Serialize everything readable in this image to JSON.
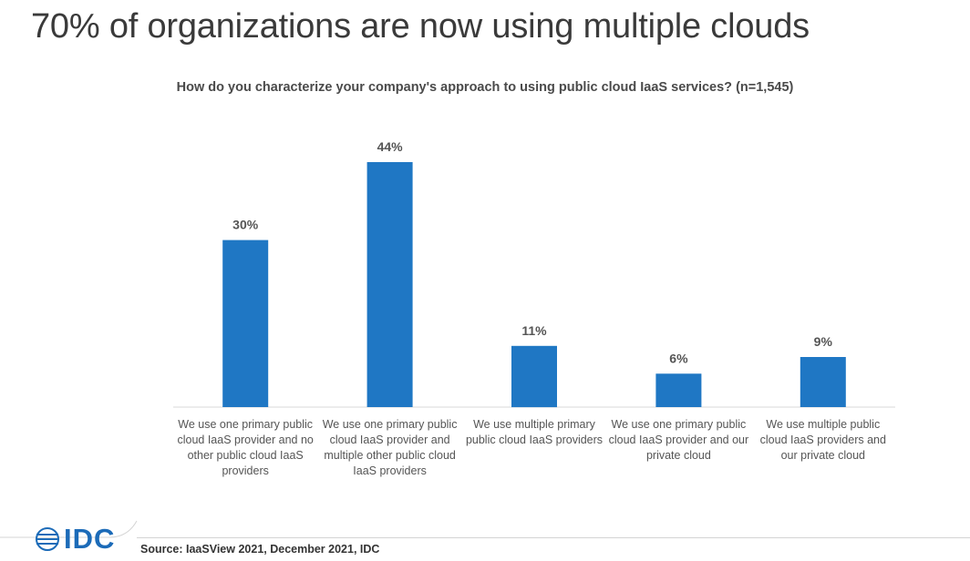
{
  "page": {
    "title": "70% of organizations are now using multiple clouds"
  },
  "chart_data": {
    "type": "bar",
    "title": "How do you characterize your company's approach to using public cloud IaaS services? (n=1,545)",
    "xlabel": "",
    "ylabel": "",
    "ylim": [
      0,
      50
    ],
    "grid": false,
    "color": "#1f77c4",
    "categories": [
      "We use one primary public cloud IaaS provider and no other public cloud IaaS providers",
      "We use one primary public cloud IaaS provider and multiple other public cloud IaaS providers",
      "We use multiple primary public cloud IaaS providers",
      "We use one primary public cloud IaaS provider and our private cloud",
      "We use multiple public cloud IaaS providers and our private cloud"
    ],
    "values": [
      30,
      44,
      11,
      6,
      9
    ],
    "value_labels": [
      "30%",
      "44%",
      "11%",
      "6%",
      "9%"
    ]
  },
  "footer": {
    "logo_text": "IDC",
    "source": "Source: IaaSView 2021, December 2021, IDC"
  }
}
